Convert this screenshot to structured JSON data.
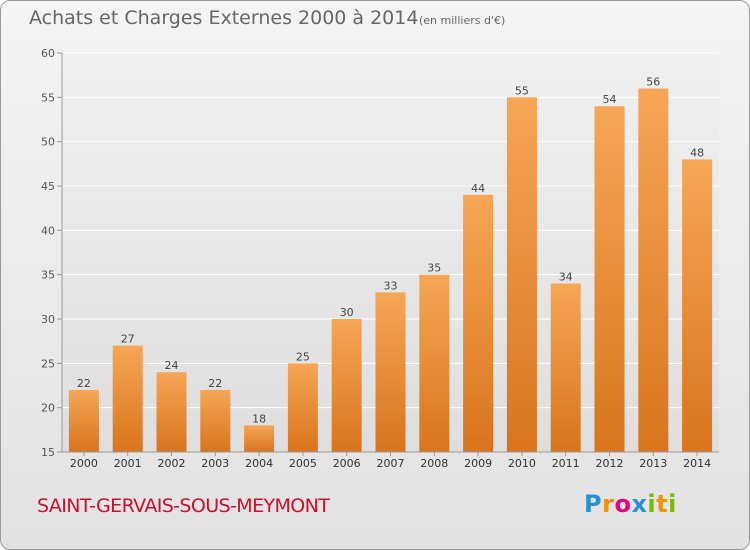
{
  "title": "Achats et Charges Externes 2000 à 2014",
  "subtitle": "(en milliers d'€)",
  "commune": "SAINT-GERVAIS-SOUS-MEYMONT",
  "logo": {
    "letters": [
      "P",
      "r",
      "o",
      "x",
      "i",
      "t",
      "i"
    ],
    "colors": [
      "#2a8fd6",
      "#f39200",
      "#e6007e",
      "#2a8fd6",
      "#7ab800",
      "#f39200",
      "#7ab800"
    ]
  },
  "colors": {
    "bar_light": "#f6a655",
    "bar_dark": "#d9741c",
    "title": "#666666",
    "commune": "#c8102e"
  },
  "chart_data": {
    "type": "bar",
    "title": "Achats et Charges Externes 2000 à 2014",
    "subtitle": "(en milliers d'€)",
    "xlabel": "",
    "ylabel": "",
    "categories": [
      "2000",
      "2001",
      "2002",
      "2003",
      "2004",
      "2005",
      "2006",
      "2007",
      "2008",
      "2009",
      "2010",
      "2011",
      "2012",
      "2013",
      "2014"
    ],
    "values": [
      22,
      27,
      24,
      22,
      18,
      25,
      30,
      33,
      35,
      44,
      55,
      34,
      54,
      56,
      48
    ],
    "ylim": [
      15,
      60
    ],
    "yticks": [
      15,
      20,
      25,
      30,
      35,
      40,
      45,
      50,
      55,
      60
    ],
    "grid": true
  }
}
